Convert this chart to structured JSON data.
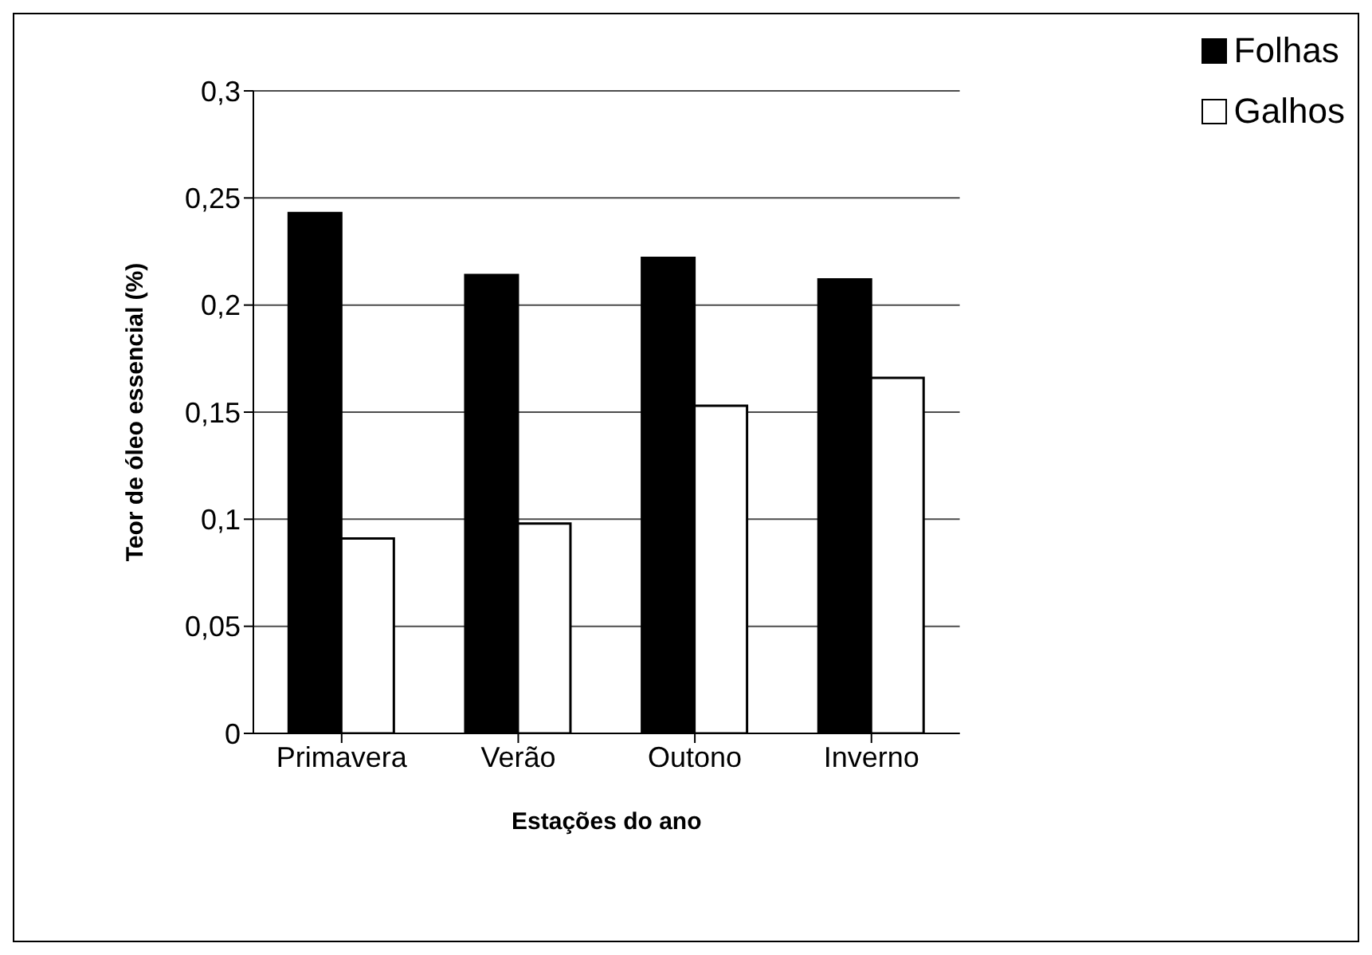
{
  "chart_data": {
    "type": "bar",
    "xlabel": "Estações do ano",
    "ylabel": "Teor de óleo essencial (%)",
    "categories": [
      "Primavera",
      "Verão",
      "Outono",
      "Inverno"
    ],
    "series": [
      {
        "name": "Folhas",
        "color": "#000000",
        "values": [
          0.243,
          0.214,
          0.222,
          0.212
        ]
      },
      {
        "name": "Galhos",
        "color": "#ffffff",
        "values": [
          0.091,
          0.098,
          0.153,
          0.166
        ]
      }
    ],
    "ylim": [
      0,
      0.3
    ],
    "yticks": [
      {
        "value": 0,
        "label": "0"
      },
      {
        "value": 0.05,
        "label": "0,05"
      },
      {
        "value": 0.1,
        "label": "0,1"
      },
      {
        "value": 0.15,
        "label": "0,15"
      },
      {
        "value": 0.2,
        "label": "0,2"
      },
      {
        "value": 0.25,
        "label": "0,25"
      },
      {
        "value": 0.3,
        "label": "0,3"
      }
    ],
    "grid": "y",
    "legend": "top right"
  }
}
